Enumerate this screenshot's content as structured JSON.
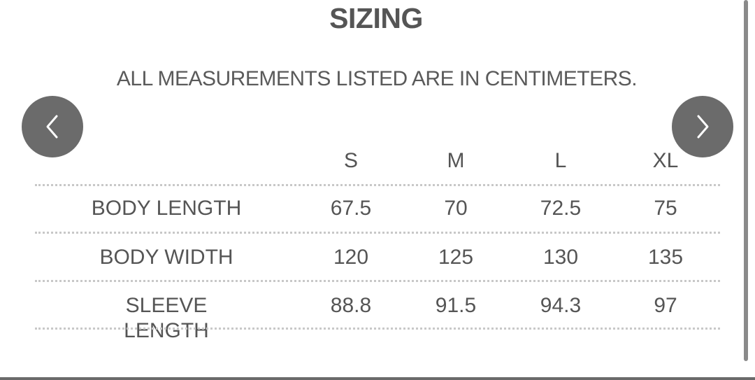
{
  "title": "SIZING",
  "subtitle": "ALL MEASUREMENTS LISTED ARE IN CENTIMETERS.",
  "nav": {
    "prev_icon": "chevron-left-icon",
    "next_icon": "chevron-right-icon"
  },
  "table": {
    "headers": [
      "",
      "S",
      "M",
      "L",
      "XL"
    ],
    "rows": [
      {
        "label": "BODY LENGTH",
        "values": [
          "67.5",
          "70",
          "72.5",
          "75"
        ]
      },
      {
        "label": "BODY WIDTH",
        "values": [
          "120",
          "125",
          "130",
          "135"
        ]
      },
      {
        "label": "SLEEVE LENGTH",
        "values": [
          "88.8",
          "91.5",
          "94.3",
          "97"
        ]
      }
    ]
  }
}
